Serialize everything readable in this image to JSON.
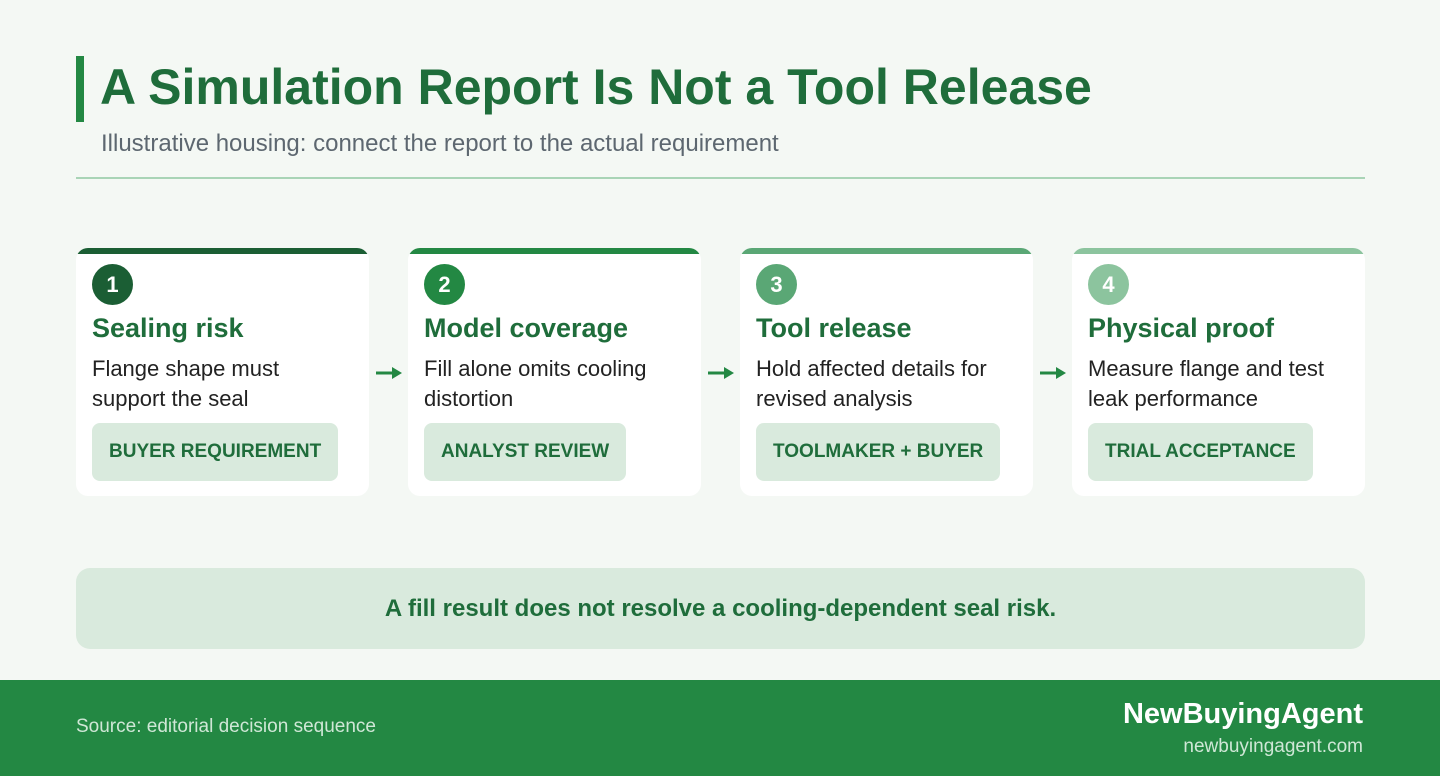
{
  "header": {
    "title": "A Simulation Report Is Not a Tool Release",
    "subtitle": "Illustrative housing: connect the report to the actual requirement",
    "accent_color": "#238843"
  },
  "steps": [
    {
      "number": "1",
      "title": "Sealing risk",
      "body": "Flange shape must support the seal",
      "tag": "BUYER REQUIREMENT",
      "color": "#1b5e34"
    },
    {
      "number": "2",
      "title": "Model coverage",
      "body": "Fill alone omits cooling distortion",
      "tag": "ANALYST REVIEW",
      "color": "#238843"
    },
    {
      "number": "3",
      "title": "Tool release",
      "body": "Hold affected details for revised analysis",
      "tag": "TOOLMAKER + BUYER",
      "color": "#5aa775"
    },
    {
      "number": "4",
      "title": "Physical proof",
      "body": "Measure flange and test leak performance",
      "tag": "TRIAL ACCEPTANCE",
      "color": "#8cc49e"
    }
  ],
  "callout": {
    "text": "A fill result does not resolve a cooling-dependent seal risk."
  },
  "footer": {
    "source": "Source: editorial decision sequence",
    "brand": "NewBuyingAgent",
    "site": "newbuyingagent.com",
    "background": "#238843"
  },
  "icons": {
    "arrow": "arrow-right-icon"
  }
}
